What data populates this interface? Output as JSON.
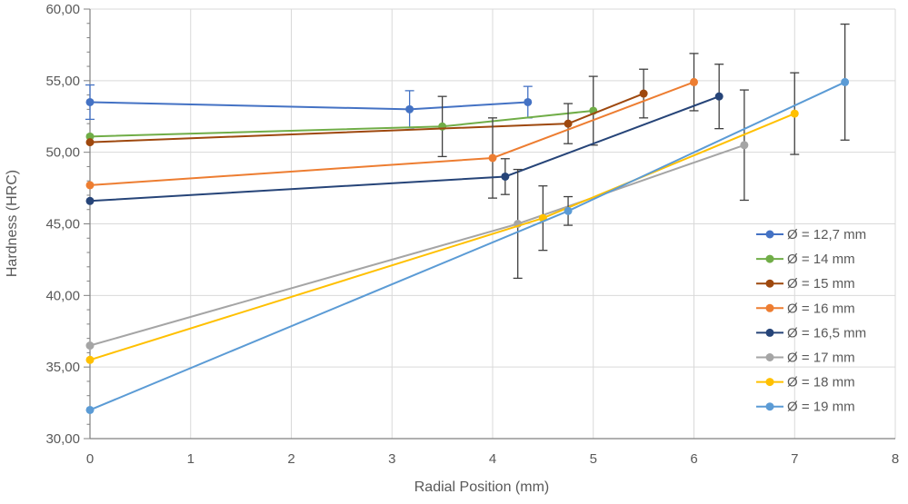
{
  "chart_data": {
    "type": "line",
    "title": "",
    "xlabel": "Radial Position (mm)",
    "ylabel": "Hardness (HRC)",
    "xlim": [
      0,
      8
    ],
    "ylim": [
      30,
      60
    ],
    "grid": true,
    "legend_position": "right-middle",
    "grid_color": "#D9D9D9",
    "axis_color": "#808080",
    "text_color": "#595959",
    "x_ticks": [
      0,
      1,
      2,
      3,
      4,
      5,
      6,
      7,
      8
    ],
    "y_ticks": [
      {
        "v": 30,
        "label": "30,00"
      },
      {
        "v": 35,
        "label": "35,00"
      },
      {
        "v": 40,
        "label": "40,00"
      },
      {
        "v": 45,
        "label": "45,00"
      },
      {
        "v": 50,
        "label": "50,00"
      },
      {
        "v": 55,
        "label": "55,00"
      },
      {
        "v": 60,
        "label": "60,00"
      }
    ],
    "series": [
      {
        "name": "Ø = 12,7 mm",
        "color": "#4472C4",
        "err_color": "#4472C4",
        "points": [
          {
            "x": 0,
            "y": 53.5,
            "err": 1.2
          },
          {
            "x": 3.175,
            "y": 53.0,
            "err": 1.3
          },
          {
            "x": 4.35,
            "y": 53.5,
            "err": 1.1
          }
        ]
      },
      {
        "name": "Ø = 14 mm",
        "color": "#70AD47",
        "err_color": "#404040",
        "points": [
          {
            "x": 0,
            "y": 51.1,
            "err": null
          },
          {
            "x": 3.5,
            "y": 51.8,
            "err": 2.1
          },
          {
            "x": 5,
            "y": 52.9,
            "err": 2.4
          }
        ]
      },
      {
        "name": "Ø = 15 mm",
        "color": "#9E480E",
        "err_color": "#404040",
        "points": [
          {
            "x": 0,
            "y": 50.7,
            "err": null
          },
          {
            "x": 4.75,
            "y": 52.0,
            "err": 1.4
          },
          {
            "x": 5.5,
            "y": 54.1,
            "err": 1.7
          }
        ]
      },
      {
        "name": "Ø = 16 mm",
        "color": "#ED7D31",
        "err_color": "#404040",
        "points": [
          {
            "x": 0,
            "y": 47.7,
            "err": null
          },
          {
            "x": 4,
            "y": 49.6,
            "err": 2.8
          },
          {
            "x": 6,
            "y": 54.9,
            "err": 2.0
          }
        ]
      },
      {
        "name": "Ø = 16,5 mm",
        "color": "#264478",
        "err_color": "#404040",
        "points": [
          {
            "x": 0,
            "y": 46.6,
            "err": null
          },
          {
            "x": 4.125,
            "y": 48.3,
            "err": 1.25
          },
          {
            "x": 6.25,
            "y": 53.9,
            "err": 2.25
          }
        ]
      },
      {
        "name": "Ø = 17 mm",
        "color": "#A5A5A5",
        "err_color": "#404040",
        "points": [
          {
            "x": 0,
            "y": 36.5,
            "err": null
          },
          {
            "x": 4.25,
            "y": 45.0,
            "err": 3.8
          },
          {
            "x": 6.5,
            "y": 50.5,
            "err": 3.85
          }
        ]
      },
      {
        "name": "Ø = 18 mm",
        "color": "#FFC000",
        "err_color": "#404040",
        "points": [
          {
            "x": 0,
            "y": 35.5,
            "err": null
          },
          {
            "x": 4.5,
            "y": 45.4,
            "err": 2.25
          },
          {
            "x": 7,
            "y": 52.7,
            "err": 2.85
          }
        ]
      },
      {
        "name": "Ø = 19 mm",
        "color": "#5B9BD5",
        "err_color": "#404040",
        "points": [
          {
            "x": 0,
            "y": 32.0,
            "err": null
          },
          {
            "x": 4.75,
            "y": 45.9,
            "err": 1.0
          },
          {
            "x": 7.5,
            "y": 54.9,
            "err": 4.05
          }
        ]
      }
    ]
  }
}
